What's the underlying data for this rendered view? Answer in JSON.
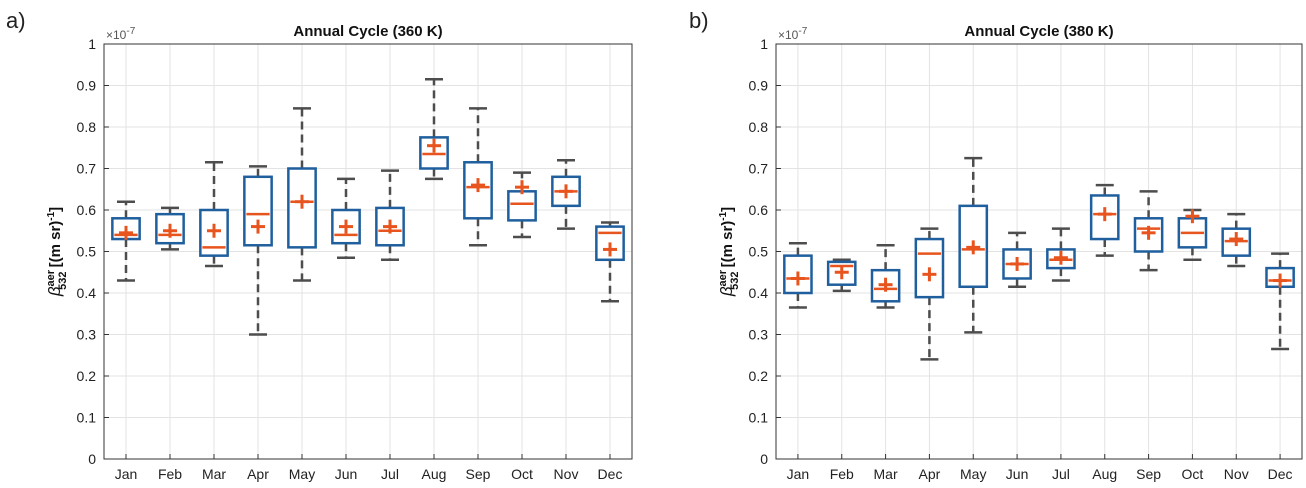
{
  "colors": {
    "box": "#1f5f9e",
    "median": "#e8541e",
    "whisker": "#4d4d4d",
    "grid": "#e3e3e3",
    "axis": "#333333"
  },
  "chart_data": [
    {
      "panel_label": "a)",
      "type": "box",
      "title": "Annual Cycle (360 K)",
      "ylabel_main": "β",
      "ylabel_super": "aer",
      "ylabel_sub": "532",
      "ylabel_units": " [(m sr)",
      "ylabel_units_exp": "-1",
      "ylabel_units_close": "]",
      "exponent_label": "×10",
      "exponent_power": "-7",
      "ylim": [
        0,
        1
      ],
      "yticks": [
        "0",
        "0.1",
        "0.2",
        "0.3",
        "0.4",
        "0.5",
        "0.6",
        "0.7",
        "0.8",
        "0.9",
        "1"
      ],
      "grid": true,
      "categories": [
        "Jan",
        "Feb",
        "Mar",
        "Apr",
        "May",
        "Jun",
        "Jul",
        "Aug",
        "Sep",
        "Oct",
        "Nov",
        "Dec"
      ],
      "boxes": [
        {
          "whisker_low": 0.43,
          "q1": 0.53,
          "median": 0.54,
          "q3": 0.58,
          "whisker_high": 0.62,
          "mean": 0.545
        },
        {
          "whisker_low": 0.505,
          "q1": 0.52,
          "median": 0.54,
          "q3": 0.59,
          "whisker_high": 0.605,
          "mean": 0.55
        },
        {
          "whisker_low": 0.465,
          "q1": 0.49,
          "median": 0.51,
          "q3": 0.6,
          "whisker_high": 0.715,
          "mean": 0.55
        },
        {
          "whisker_low": 0.3,
          "q1": 0.515,
          "median": 0.59,
          "q3": 0.68,
          "whisker_high": 0.705,
          "mean": 0.56
        },
        {
          "whisker_low": 0.43,
          "q1": 0.51,
          "median": 0.62,
          "q3": 0.7,
          "whisker_high": 0.845,
          "mean": 0.62
        },
        {
          "whisker_low": 0.485,
          "q1": 0.52,
          "median": 0.54,
          "q3": 0.6,
          "whisker_high": 0.675,
          "mean": 0.56
        },
        {
          "whisker_low": 0.48,
          "q1": 0.515,
          "median": 0.55,
          "q3": 0.605,
          "whisker_high": 0.695,
          "mean": 0.56
        },
        {
          "whisker_low": 0.675,
          "q1": 0.7,
          "median": 0.735,
          "q3": 0.775,
          "whisker_high": 0.915,
          "mean": 0.755
        },
        {
          "whisker_low": 0.515,
          "q1": 0.58,
          "median": 0.655,
          "q3": 0.715,
          "whisker_high": 0.845,
          "mean": 0.66
        },
        {
          "whisker_low": 0.535,
          "q1": 0.575,
          "median": 0.615,
          "q3": 0.645,
          "whisker_high": 0.69,
          "mean": 0.655
        },
        {
          "whisker_low": 0.555,
          "q1": 0.61,
          "median": 0.645,
          "q3": 0.68,
          "whisker_high": 0.72,
          "mean": 0.645
        },
        {
          "whisker_low": 0.38,
          "q1": 0.48,
          "median": 0.545,
          "q3": 0.56,
          "whisker_high": 0.57,
          "mean": 0.505
        }
      ]
    },
    {
      "panel_label": "b)",
      "type": "box",
      "title": "Annual Cycle (380 K)",
      "ylabel_main": "β",
      "ylabel_super": "aer",
      "ylabel_sub": "532",
      "ylabel_units": " [(m sr)",
      "ylabel_units_exp": "-1",
      "ylabel_units_close": "]",
      "exponent_label": "×10",
      "exponent_power": "-7",
      "ylim": [
        0,
        1
      ],
      "yticks": [
        "0",
        "0.1",
        "0.2",
        "0.3",
        "0.4",
        "0.5",
        "0.6",
        "0.7",
        "0.8",
        "0.9",
        "1"
      ],
      "grid": true,
      "categories": [
        "Jan",
        "Feb",
        "Mar",
        "Apr",
        "May",
        "Jun",
        "Jul",
        "Aug",
        "Sep",
        "Oct",
        "Nov",
        "Dec"
      ],
      "boxes": [
        {
          "whisker_low": 0.365,
          "q1": 0.4,
          "median": 0.435,
          "q3": 0.49,
          "whisker_high": 0.52,
          "mean": 0.435
        },
        {
          "whisker_low": 0.405,
          "q1": 0.42,
          "median": 0.465,
          "q3": 0.475,
          "whisker_high": 0.48,
          "mean": 0.45
        },
        {
          "whisker_low": 0.365,
          "q1": 0.38,
          "median": 0.41,
          "q3": 0.455,
          "whisker_high": 0.515,
          "mean": 0.42
        },
        {
          "whisker_low": 0.24,
          "q1": 0.39,
          "median": 0.495,
          "q3": 0.53,
          "whisker_high": 0.555,
          "mean": 0.445
        },
        {
          "whisker_low": 0.305,
          "q1": 0.415,
          "median": 0.505,
          "q3": 0.61,
          "whisker_high": 0.725,
          "mean": 0.51
        },
        {
          "whisker_low": 0.415,
          "q1": 0.435,
          "median": 0.47,
          "q3": 0.505,
          "whisker_high": 0.545,
          "mean": 0.47
        },
        {
          "whisker_low": 0.43,
          "q1": 0.46,
          "median": 0.48,
          "q3": 0.505,
          "whisker_high": 0.555,
          "mean": 0.485
        },
        {
          "whisker_low": 0.49,
          "q1": 0.53,
          "median": 0.59,
          "q3": 0.635,
          "whisker_high": 0.66,
          "mean": 0.59
        },
        {
          "whisker_low": 0.455,
          "q1": 0.5,
          "median": 0.555,
          "q3": 0.58,
          "whisker_high": 0.645,
          "mean": 0.545
        },
        {
          "whisker_low": 0.48,
          "q1": 0.51,
          "median": 0.545,
          "q3": 0.58,
          "whisker_high": 0.6,
          "mean": 0.585
        },
        {
          "whisker_low": 0.465,
          "q1": 0.49,
          "median": 0.525,
          "q3": 0.555,
          "whisker_high": 0.59,
          "mean": 0.53
        },
        {
          "whisker_low": 0.265,
          "q1": 0.415,
          "median": 0.43,
          "q3": 0.46,
          "whisker_high": 0.495,
          "mean": 0.43
        }
      ]
    }
  ]
}
